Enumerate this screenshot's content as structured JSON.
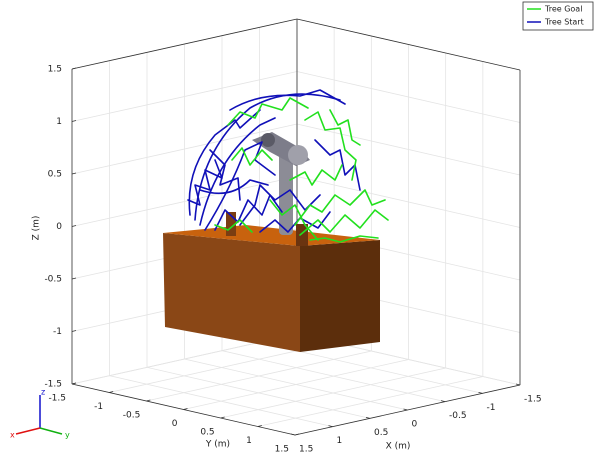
{
  "chart_data": {
    "type": "line3d",
    "legend_position": "northeast",
    "grid": true,
    "xlabel": "X (m)",
    "ylabel": "Y (m)",
    "zlabel": "Z (m)",
    "xlim": [
      -1.5,
      1.5
    ],
    "ylim": [
      -1.5,
      1.5
    ],
    "zlim": [
      -1.5,
      1.5
    ],
    "xticks": [
      -1.5,
      -1,
      -0.5,
      0,
      0.5,
      1,
      1.5
    ],
    "yticks": [
      -1.5,
      -1,
      -0.5,
      0,
      0.5,
      1,
      1.5
    ],
    "zticks": [
      -1.5,
      -1,
      -0.5,
      0,
      0.5,
      1,
      1.5
    ],
    "series": [
      {
        "name": "Tree Goal",
        "color": "#22e01e"
      },
      {
        "name": "Tree Start",
        "color": "#1010b8"
      }
    ]
  },
  "triad": {
    "x": "x",
    "y": "y",
    "z": "z"
  }
}
